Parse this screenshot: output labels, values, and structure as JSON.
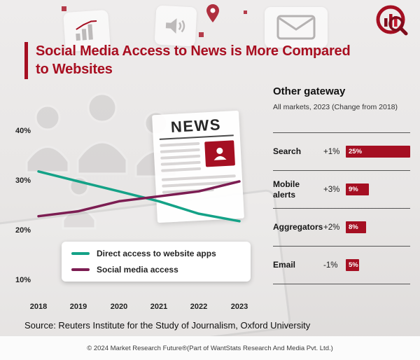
{
  "header": {
    "title_line1": "Social Media Access to News is More Compared",
    "title_line2": "to Websites"
  },
  "colors": {
    "accent_red": "#a50f22",
    "title_red": "#a80e20",
    "teal": "#14a287",
    "plum": "#7c1d52"
  },
  "news_graphic": {
    "masthead": "NEWS"
  },
  "chart_data": [
    {
      "type": "line",
      "title": "Social Media Access to News is More Compared to Websites",
      "x": [
        "2018",
        "2019",
        "2020",
        "2021",
        "2022",
        "2023"
      ],
      "series": [
        {
          "name": "Direct access to website apps",
          "color": "#14a287",
          "values": [
            32,
            30,
            28,
            26,
            23.5,
            22
          ]
        },
        {
          "name": "Social media access",
          "color": "#7c1d52",
          "values": [
            23,
            24,
            26,
            27,
            28,
            30
          ]
        }
      ],
      "yticks": [
        "40%",
        "30%",
        "20%",
        "10%"
      ],
      "ylim": [
        10,
        40
      ],
      "grid": false,
      "legend_position": "bottom-left"
    },
    {
      "type": "bar",
      "orientation": "horizontal",
      "title": "Other gateway",
      "subtitle": "All markets, 2023 (Change from 2018)",
      "categories": [
        "Search",
        "Mobile alerts",
        "Aggregators",
        "Email"
      ],
      "values": [
        25,
        9,
        8,
        5
      ],
      "value_labels": [
        "25%",
        "9%",
        "8%",
        "5%"
      ],
      "changes": [
        "+1%",
        "+3%",
        "+2%",
        "-1%"
      ],
      "bar_color": "#a50f22",
      "xlim": [
        0,
        25
      ]
    }
  ],
  "source": "Source: Reuters Institute for the Study of Journalism, Oxford University",
  "footer": "© 2024 Market Research Future®(Part of WantStats Research And Media Pvt. Ltd.)"
}
